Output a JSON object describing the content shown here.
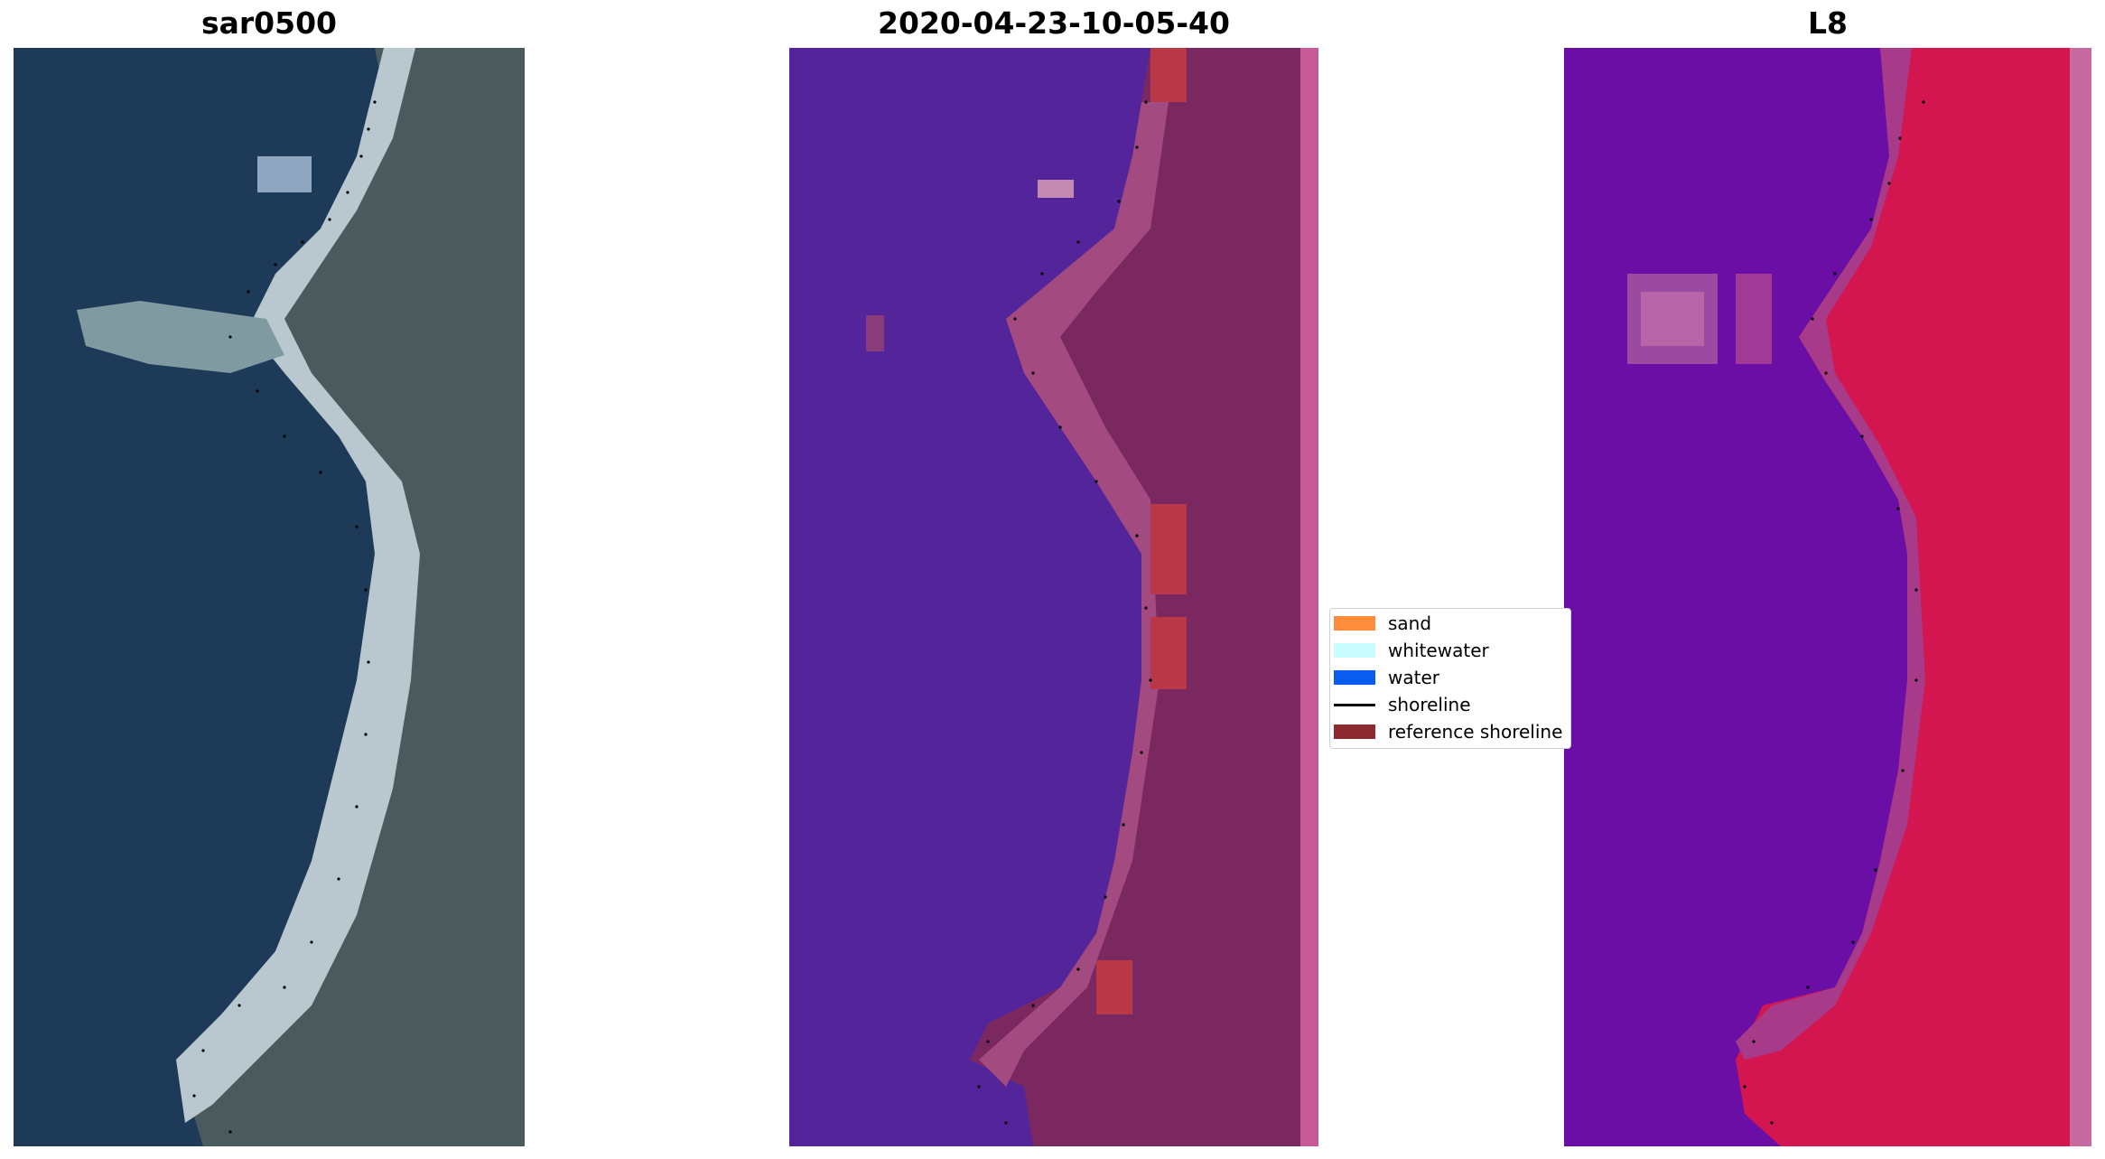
{
  "panels": [
    {
      "title": "sar0500",
      "content": "RGB satellite image of coastline with detected shoreline points"
    },
    {
      "title": "2020-04-23-10-05-40",
      "content": "classified image overlaid on false-colour background"
    },
    {
      "title": "L8",
      "content": "MNDWI-style index image with shoreline points"
    }
  ],
  "legend": {
    "items": [
      {
        "label": "sand",
        "color": "#ff8c3a",
        "kind": "swatch"
      },
      {
        "label": "whitewater",
        "color": "#c8fcff",
        "kind": "swatch"
      },
      {
        "label": "water",
        "color": "#0a5cf0",
        "kind": "swatch"
      },
      {
        "label": "shoreline",
        "color": "#000000",
        "kind": "line"
      },
      {
        "label": "reference shoreline",
        "color": "#8c2a30",
        "kind": "swatch"
      }
    ]
  },
  "colors": {
    "sea_rgb": "#1d3c5a",
    "land_rgb": "#4a5a5c",
    "beach_rgb": "#c8d6dc",
    "water_class": "#54249a",
    "land_class": "#7a2660",
    "sand_class": "#b83848",
    "index_water": "#6a0ea6",
    "index_land": "#d41650"
  }
}
